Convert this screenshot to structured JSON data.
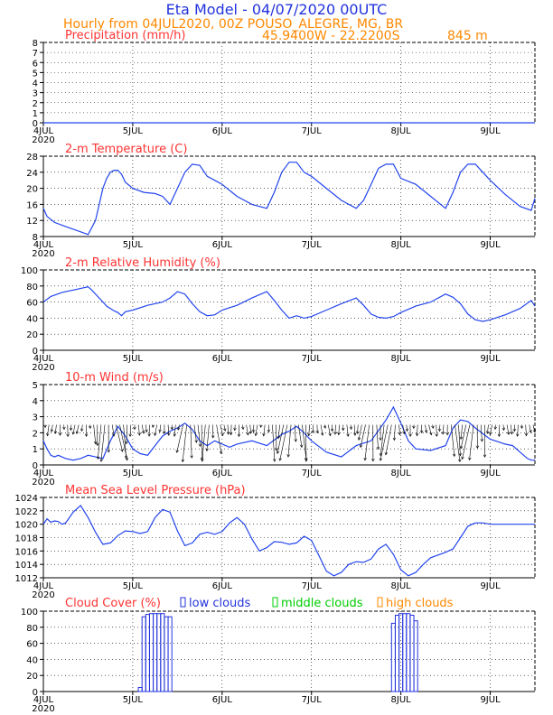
{
  "header": {
    "title": "Eta Model - 04/07/2020 00UTC",
    "subtitle": "Hourly from 04JUL2020, 00Z  POUSO_ALEGRE, MG, BR",
    "coords": "45.9400W - 22.2200S",
    "elevation": "845  m"
  },
  "colors": {
    "title": "#2233dd",
    "meta": "#ff8800",
    "panel_title": "#ff3333",
    "line": "#2244ee",
    "frame": "#000000",
    "grid": "#000000",
    "low": "#2233dd",
    "mid": "#00cc00",
    "high": "#ff8800"
  },
  "x_axis": {
    "tick_labels": [
      "4JUL",
      "5JUL",
      "6JUL",
      "7JUL",
      "8JUL",
      "9JUL"
    ],
    "year_label": "2020",
    "range_hours": [
      0,
      132
    ]
  },
  "chart_data": [
    {
      "id": "precip",
      "type": "line",
      "title": "Precipitation (mm/h)",
      "ylim": [
        0,
        8
      ],
      "yticks": [
        0,
        1,
        2,
        3,
        4,
        5,
        6,
        7,
        8
      ],
      "series": [
        {
          "name": "precipitation",
          "x": [
            0,
            132
          ],
          "values": [
            0,
            0
          ]
        }
      ]
    },
    {
      "id": "temp",
      "type": "line",
      "title": "2-m Temperature (C)",
      "ylim": [
        8,
        28
      ],
      "yticks": [
        8,
        12,
        16,
        20,
        24,
        28
      ],
      "series": [
        {
          "name": "temperature",
          "x": [
            0,
            1,
            3,
            6,
            9,
            12,
            14,
            16,
            17,
            18,
            19,
            20,
            21,
            22,
            24,
            27,
            30,
            32,
            34,
            36,
            38,
            40,
            42,
            44,
            46,
            48,
            52,
            56,
            60,
            62,
            64,
            66,
            68,
            70,
            72,
            76,
            80,
            84,
            86,
            88,
            90,
            92,
            94,
            96,
            100,
            104,
            108,
            110,
            112,
            114,
            116,
            118,
            120,
            124,
            128,
            131,
            132
          ],
          "values": [
            15,
            13,
            11.5,
            10.5,
            9.5,
            8.5,
            12,
            20,
            22.5,
            24,
            24.5,
            24.5,
            23.5,
            21.5,
            20,
            19,
            18.7,
            18,
            16,
            20,
            24,
            26,
            25.7,
            23,
            22,
            21,
            18,
            16,
            15,
            19,
            24,
            26.5,
            26.5,
            24,
            23,
            20,
            17,
            15,
            17,
            21,
            25,
            26,
            26,
            22.5,
            21,
            18,
            15,
            19,
            24,
            26,
            26,
            24,
            22,
            18.5,
            15.5,
            14.5,
            17.5
          ]
        }
      ]
    },
    {
      "id": "rh",
      "type": "line",
      "title": "2-m Relative Humidity (%)",
      "ylim": [
        0,
        100
      ],
      "yticks": [
        0,
        20,
        40,
        60,
        80,
        100
      ],
      "series": [
        {
          "name": "relative humidity",
          "x": [
            0,
            2,
            5,
            9,
            12,
            13,
            15,
            17,
            19,
            20,
            21,
            22,
            24,
            28,
            32,
            34,
            36,
            38,
            40,
            42,
            44,
            46,
            48,
            52,
            56,
            60,
            62,
            64,
            66,
            68,
            70,
            72,
            76,
            80,
            84,
            86,
            88,
            90,
            92,
            94,
            96,
            100,
            104,
            108,
            110,
            112,
            114,
            116,
            118,
            120,
            124,
            128,
            131,
            132
          ],
          "values": [
            60,
            67,
            72,
            76,
            79,
            75,
            65,
            55,
            49,
            47,
            43,
            48,
            50,
            56,
            60,
            65,
            73,
            70,
            58,
            48,
            43,
            44,
            50,
            56,
            65,
            73,
            62,
            50,
            40,
            43,
            40,
            42,
            50,
            58,
            65,
            56,
            45,
            41,
            40,
            42,
            47,
            55,
            60,
            70,
            66,
            58,
            45,
            38,
            36,
            38,
            44,
            52,
            62,
            55
          ]
        }
      ]
    },
    {
      "id": "wind",
      "type": "line",
      "title": "10-m Wind (m/s)",
      "ylim": [
        0,
        5
      ],
      "yticks": [
        0,
        1,
        2,
        3,
        4,
        5
      ],
      "series": [
        {
          "name": "wind speed",
          "x": [
            0,
            1,
            2,
            3,
            4,
            6,
            8,
            10,
            12,
            14,
            16,
            18,
            20,
            22,
            24,
            26,
            28,
            30,
            32,
            34,
            36,
            38,
            40,
            42,
            44,
            46,
            48,
            50,
            52,
            56,
            60,
            64,
            66,
            68,
            70,
            72,
            76,
            80,
            84,
            88,
            92,
            94,
            96,
            98,
            100,
            104,
            108,
            110,
            112,
            114,
            116,
            120,
            124,
            126,
            128,
            130,
            131,
            132
          ],
          "values": [
            1.5,
            1.0,
            0.6,
            0.5,
            0.6,
            0.4,
            0.3,
            0.4,
            0.6,
            0.5,
            0.4,
            1.5,
            2.4,
            1.8,
            1.0,
            0.7,
            0.6,
            1.2,
            1.8,
            2.1,
            2.3,
            2.6,
            2.2,
            1.5,
            1.2,
            1.5,
            1.3,
            1.1,
            1.3,
            1.5,
            1.2,
            1.9,
            2.1,
            2.4,
            2.0,
            1.5,
            0.8,
            0.5,
            1.2,
            1.5,
            2.8,
            3.6,
            2.6,
            1.5,
            1.0,
            0.9,
            1.2,
            2.3,
            2.8,
            2.7,
            2.3,
            1.6,
            1.3,
            1.2,
            0.8,
            0.4,
            0.3,
            0.3
          ]
        }
      ]
    },
    {
      "id": "mslp",
      "type": "line",
      "title": "Mean Sea Level Pressure (hPa)",
      "ylim": [
        1012,
        1024
      ],
      "yticks": [
        1012,
        1014,
        1016,
        1018,
        1020,
        1022,
        1024
      ],
      "series": [
        {
          "name": "mslp",
          "x": [
            0,
            1,
            2,
            3,
            4,
            5,
            6,
            8,
            10,
            12,
            14,
            16,
            18,
            20,
            22,
            24,
            26,
            28,
            30,
            32,
            34,
            36,
            38,
            40,
            42,
            44,
            46,
            48,
            50,
            52,
            54,
            56,
            58,
            60,
            62,
            64,
            66,
            68,
            70,
            72,
            74,
            76,
            78,
            80,
            82,
            84,
            86,
            88,
            90,
            92,
            94,
            96,
            98,
            100,
            102,
            104,
            106,
            108,
            110,
            112,
            114,
            116,
            118,
            120,
            122,
            124,
            126,
            128,
            130,
            132
          ],
          "values": [
            1020,
            1020.8,
            1020.3,
            1020.5,
            1020.4,
            1020.0,
            1020.2,
            1021.8,
            1022.8,
            1021.0,
            1018.8,
            1017.0,
            1017.2,
            1018.3,
            1019.0,
            1018.9,
            1018.6,
            1018.9,
            1021.0,
            1022.2,
            1021.8,
            1019.0,
            1016.8,
            1017.2,
            1018.5,
            1018.8,
            1018.5,
            1018.9,
            1020.2,
            1021.0,
            1020.0,
            1017.8,
            1016.0,
            1016.5,
            1017.4,
            1017.3,
            1017.0,
            1017.2,
            1018.2,
            1017.6,
            1015.3,
            1013.0,
            1012.3,
            1012.8,
            1014.0,
            1014.4,
            1014.3,
            1014.8,
            1016.3,
            1017.0,
            1015.5,
            1013.2,
            1012.3,
            1012.8,
            1014.0,
            1015.0,
            1015.4,
            1015.8,
            1016.3,
            1018.0,
            1019.7,
            1020.2,
            1020.2,
            1020.0,
            1020.0,
            1020.0,
            1020.0,
            1020.0,
            1020.0,
            1020.0
          ]
        }
      ]
    },
    {
      "id": "cloud",
      "type": "bar",
      "title": "Cloud Cover (%)",
      "legend": [
        "low clouds",
        "middle clouds",
        "high clouds"
      ],
      "ylim": [
        0,
        100
      ],
      "yticks": [
        0,
        20,
        40,
        60,
        80,
        100
      ],
      "bars": [
        {
          "hour": 26,
          "value": 5
        },
        {
          "hour": 27,
          "value": 93
        },
        {
          "hour": 28,
          "value": 96
        },
        {
          "hour": 29,
          "value": 97
        },
        {
          "hour": 30,
          "value": 97
        },
        {
          "hour": 31,
          "value": 97
        },
        {
          "hour": 32,
          "value": 97
        },
        {
          "hour": 33,
          "value": 93
        },
        {
          "hour": 34,
          "value": 93
        },
        {
          "hour": 94,
          "value": 85
        },
        {
          "hour": 95,
          "value": 95
        },
        {
          "hour": 96,
          "value": 97
        },
        {
          "hour": 97,
          "value": 97
        },
        {
          "hour": 98,
          "value": 97
        },
        {
          "hour": 99,
          "value": 95
        },
        {
          "hour": 100,
          "value": 88
        }
      ]
    }
  ]
}
